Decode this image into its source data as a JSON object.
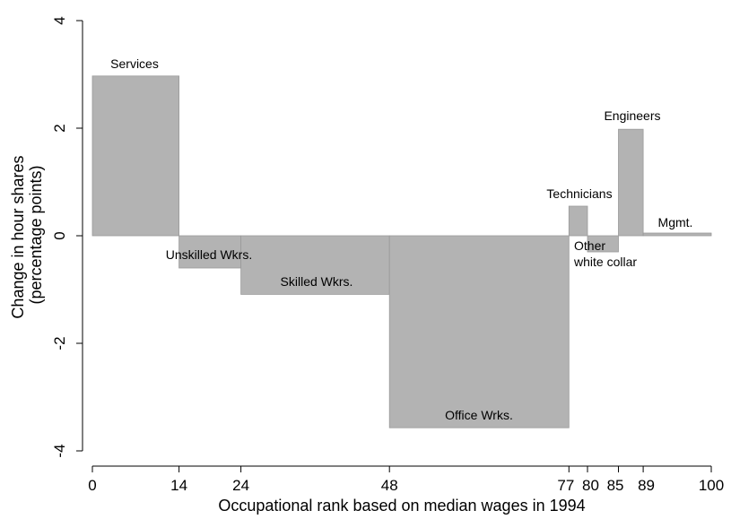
{
  "chart_data": {
    "type": "bar",
    "variable_width": true,
    "xlabel": "Occupational rank based on median wages in 1994",
    "ylabel": [
      "Change in hour shares",
      "(percentage points)"
    ],
    "xlim": [
      0,
      100
    ],
    "ylim": [
      -4,
      4
    ],
    "x_ticks": [
      0,
      14,
      24,
      48,
      77,
      80,
      85,
      89,
      100
    ],
    "y_ticks": [
      4,
      2,
      0,
      -2,
      -4
    ],
    "y_tick_labels": [
      "4",
      "2",
      "0",
      "-2",
      "-4"
    ],
    "grid": false,
    "bar_color": "#b3b3b3",
    "bars": [
      {
        "label": [
          "Services"
        ],
        "x_start": 0,
        "x_end": 14,
        "value": 2.97
      },
      {
        "label": [
          "Unskilled Wkrs."
        ],
        "x_start": 14,
        "x_end": 24,
        "value": -0.6
      },
      {
        "label": [
          "Skilled Wkrs."
        ],
        "x_start": 24,
        "x_end": 48,
        "value": -1.09
      },
      {
        "label": [
          "Office Wrks."
        ],
        "x_start": 48,
        "x_end": 77,
        "value": -3.57
      },
      {
        "label": [
          "Technicians"
        ],
        "x_start": 77,
        "x_end": 80,
        "value": 0.55
      },
      {
        "label": [
          "Other",
          "white collar"
        ],
        "x_start": 80,
        "x_end": 85,
        "value": -0.3
      },
      {
        "label": [
          "Engineers"
        ],
        "x_start": 85,
        "x_end": 89,
        "value": 1.98
      },
      {
        "label": [
          "Mgmt."
        ],
        "x_start": 89,
        "x_end": 100,
        "value": 0.05
      }
    ]
  }
}
